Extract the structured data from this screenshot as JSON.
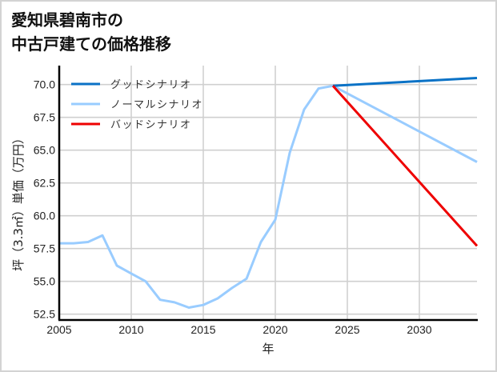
{
  "title": {
    "line1": "愛知県碧南市の",
    "line2": "中古戸建ての価格推移"
  },
  "chart_data": {
    "type": "line",
    "title": "愛知県碧南市の中古戸建ての価格推移",
    "xlabel": "年",
    "ylabel": "坪（3.3㎡）単価（万円）",
    "xlim": [
      2005,
      2034
    ],
    "ylim": [
      52.2,
      71.4
    ],
    "x_ticks": [
      2005,
      2010,
      2015,
      2020,
      2025,
      2030
    ],
    "y_ticks": [
      52.5,
      55.0,
      57.5,
      60.0,
      62.5,
      65.0,
      67.5,
      70.0
    ],
    "x_tick_labels": [
      "2005",
      "2010",
      "2015",
      "2020",
      "2025",
      "2030"
    ],
    "y_tick_labels": [
      "52.5",
      "55.0",
      "57.5",
      "60.0",
      "62.5",
      "65.0",
      "67.5",
      "70.0"
    ],
    "grid": true,
    "legend_position": "upper left",
    "series": [
      {
        "name": "グッドシナリオ",
        "color": "#0a72c6",
        "x": [
          2024,
          2034
        ],
        "values": [
          69.9,
          70.5
        ]
      },
      {
        "name": "ノーマルシナリオ",
        "color": "#99ccff",
        "x": [
          2005,
          2006,
          2007,
          2008,
          2009,
          2010,
          2011,
          2012,
          2013,
          2014,
          2015,
          2016,
          2017,
          2018,
          2019,
          2020,
          2021,
          2022,
          2023,
          2024,
          2034
        ],
        "values": [
          57.9,
          57.9,
          58.0,
          58.5,
          56.2,
          55.6,
          55.0,
          53.6,
          53.4,
          53.0,
          53.2,
          53.7,
          54.5,
          55.2,
          58.0,
          59.7,
          64.8,
          68.1,
          69.7,
          69.9,
          64.1
        ]
      },
      {
        "name": "バッドシナリオ",
        "color": "#ee0000",
        "x": [
          2024,
          2034
        ],
        "values": [
          69.9,
          57.7
        ]
      }
    ]
  },
  "colors": {
    "grid": "#d0d0d0",
    "axis": "#000000",
    "frame": "#d3d3d3"
  }
}
